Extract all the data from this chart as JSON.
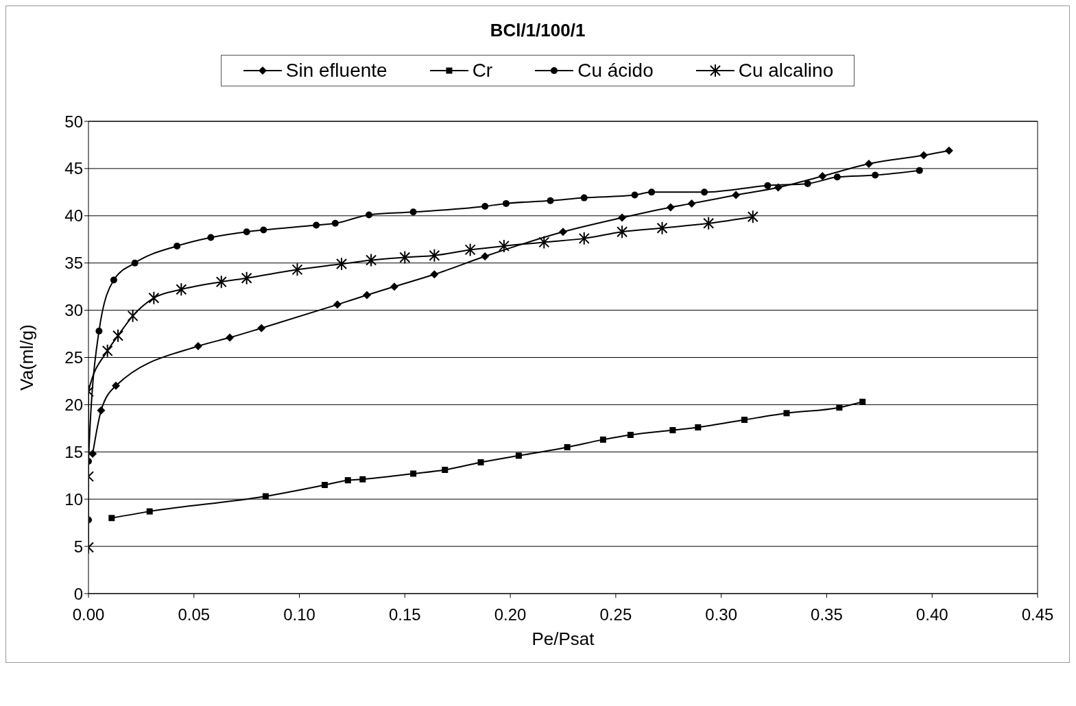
{
  "chart_data": {
    "type": "line",
    "title": "BCl/1/100/1",
    "xlabel": "Pe/Psat",
    "ylabel": "Va(ml/g)",
    "legend": "top",
    "grid": "y",
    "line_style": "solid",
    "xlim": [
      0,
      0.45
    ],
    "xticks": [
      {
        "value": 0,
        "label": "0.00"
      },
      {
        "value": 0.05,
        "label": "0.05"
      },
      {
        "value": 0.1,
        "label": "0.10"
      },
      {
        "value": 0.15,
        "label": "0.15"
      },
      {
        "value": 0.2,
        "label": "0.20"
      },
      {
        "value": 0.25,
        "label": "0.25"
      },
      {
        "value": 0.3,
        "label": "0.30"
      },
      {
        "value": 0.35,
        "label": "0.35"
      },
      {
        "value": 0.4,
        "label": "0.40"
      },
      {
        "value": 0.45,
        "label": "0.45"
      }
    ],
    "ylim": [
      0,
      50
    ],
    "yticks": [
      0,
      5,
      10,
      15,
      20,
      25,
      30,
      35,
      40,
      45,
      50
    ],
    "series": [
      {
        "name": "Sin efluente",
        "color": "#000000",
        "marker": "diamond",
        "x": [
          0.002,
          0.006,
          0.013,
          0.052,
          0.067,
          0.082,
          0.118,
          0.132,
          0.145,
          0.164,
          0.188,
          0.225,
          0.253,
          0.276,
          0.286,
          0.307,
          0.327,
          0.348,
          0.37,
          0.396,
          0.408
        ],
        "values": [
          14.8,
          19.4,
          22.0,
          26.2,
          27.1,
          28.1,
          30.6,
          31.6,
          32.5,
          33.8,
          35.7,
          38.3,
          39.8,
          40.9,
          41.3,
          42.2,
          43.0,
          44.2,
          45.5,
          46.4,
          46.9
        ]
      },
      {
        "name": "Cr",
        "color": "#000000",
        "marker": "square",
        "x": [
          0.011,
          0.029,
          0.084,
          0.112,
          0.123,
          0.13,
          0.154,
          0.169,
          0.186,
          0.204,
          0.227,
          0.244,
          0.257,
          0.277,
          0.289,
          0.311,
          0.331,
          0.356,
          0.367
        ],
        "values": [
          8.0,
          8.7,
          10.3,
          11.5,
          12.0,
          12.1,
          12.7,
          13.1,
          13.9,
          14.6,
          15.5,
          16.3,
          16.8,
          17.3,
          17.6,
          18.4,
          19.1,
          19.7,
          20.3
        ]
      },
      {
        "name": "Cu ácido",
        "color": "#000000",
        "marker": "circle",
        "x": [
          0.0,
          0.0,
          0.005,
          0.012,
          0.022,
          0.042,
          0.058,
          0.075,
          0.083,
          0.108,
          0.117,
          0.133,
          0.154,
          0.188,
          0.198,
          0.219,
          0.235,
          0.259,
          0.267,
          0.292,
          0.322,
          0.341,
          0.355,
          0.373,
          0.394
        ],
        "values": [
          7.8,
          14.0,
          27.8,
          33.2,
          35.0,
          36.8,
          37.7,
          38.3,
          38.5,
          39.0,
          39.2,
          40.1,
          40.4,
          41.0,
          41.3,
          41.6,
          41.9,
          42.2,
          42.5,
          42.5,
          43.2,
          43.4,
          44.1,
          44.3,
          44.8
        ]
      },
      {
        "name": "Cu alcalino",
        "color": "#000000",
        "marker": "cross",
        "x": [
          0.0,
          0.0,
          0.0,
          0.009,
          0.014,
          0.021,
          0.031,
          0.044,
          0.063,
          0.075,
          0.099,
          0.12,
          0.134,
          0.15,
          0.164,
          0.181,
          0.197,
          0.216,
          0.235,
          0.253,
          0.272,
          0.294,
          0.315
        ],
        "values": [
          4.9,
          12.4,
          21.4,
          25.7,
          27.3,
          29.4,
          31.3,
          32.2,
          33.0,
          33.4,
          34.3,
          34.9,
          35.3,
          35.6,
          35.8,
          36.4,
          36.8,
          37.2,
          37.6,
          38.3,
          38.7,
          39.2,
          39.9
        ]
      }
    ]
  }
}
